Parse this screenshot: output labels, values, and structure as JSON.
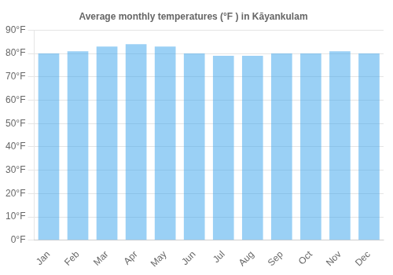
{
  "chart_data": {
    "type": "bar",
    "title": "Average monthly temperatures (°F ) in Kāyankulam",
    "categories": [
      "Jan",
      "Feb",
      "Mar",
      "Apr",
      "May",
      "Jun",
      "Jul",
      "Aug",
      "Sep",
      "Oct",
      "Nov",
      "Dec"
    ],
    "values": [
      80,
      81,
      83,
      84,
      83,
      80,
      79,
      79,
      80,
      80,
      81,
      80
    ],
    "ylim": [
      0,
      90
    ],
    "yticks": [
      {
        "value": 0,
        "label": "0°F"
      },
      {
        "value": 10,
        "label": "10°F"
      },
      {
        "value": 20,
        "label": "20°F"
      },
      {
        "value": 30,
        "label": "30°F"
      },
      {
        "value": 40,
        "label": "40°F"
      },
      {
        "value": 50,
        "label": "50°F"
      },
      {
        "value": 60,
        "label": "60°F"
      },
      {
        "value": 70,
        "label": "70°F"
      },
      {
        "value": 80,
        "label": "80°F"
      },
      {
        "value": 90,
        "label": "90°F"
      }
    ],
    "grid": true
  }
}
